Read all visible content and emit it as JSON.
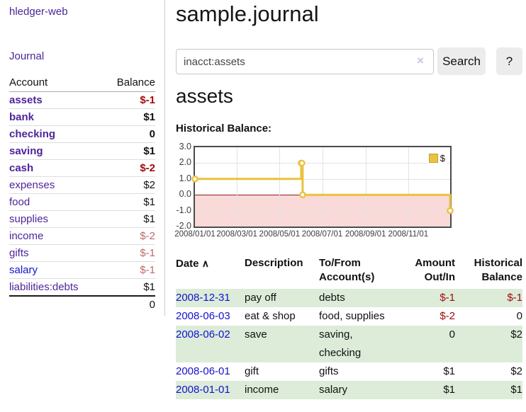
{
  "colors": {
    "link_purple": "#4D2599",
    "link_blue": "#1212CE",
    "negative_strong": "#A40A0A",
    "negative_soft": "#C06A6A",
    "row_stripe_green": "#DCECD9",
    "chart_gold": "#E9C23F",
    "chart_negative_fill": "#FAD9D9",
    "chart_zero_line": "#8B1A1A"
  },
  "sidebar": {
    "app_title": "hledger-web",
    "nav_journal": "Journal",
    "table": {
      "headers": {
        "account": "Account",
        "balance": "Balance"
      },
      "accounts": [
        {
          "name": "assets",
          "balance": "$-1",
          "level": 0,
          "bold": true,
          "name_color": "purple",
          "balance_color": "negative_strong"
        },
        {
          "name": "bank",
          "balance": "$1",
          "level": 1,
          "bold": true,
          "name_color": "purple",
          "balance_color": "default"
        },
        {
          "name": "checking",
          "balance": "0",
          "level": 2,
          "bold": true,
          "name_color": "purple",
          "balance_color": "default"
        },
        {
          "name": "saving",
          "balance": "$1",
          "level": 2,
          "bold": true,
          "name_color": "purple",
          "balance_color": "default"
        },
        {
          "name": "cash",
          "balance": "$-2",
          "level": 1,
          "bold": true,
          "name_color": "purple",
          "balance_color": "negative_strong"
        },
        {
          "name": "expenses",
          "balance": "$2",
          "level": 0,
          "bold": false,
          "name_color": "purple",
          "balance_color": "default"
        },
        {
          "name": "food",
          "balance": "$1",
          "level": 1,
          "bold": false,
          "name_color": "purple",
          "balance_color": "default"
        },
        {
          "name": "supplies",
          "balance": "$1",
          "level": 1,
          "bold": false,
          "name_color": "purple",
          "balance_color": "default"
        },
        {
          "name": "income",
          "balance": "$-2",
          "level": 0,
          "bold": false,
          "name_color": "purple",
          "balance_color": "negative_soft"
        },
        {
          "name": "gifts",
          "balance": "$-1",
          "level": 1,
          "bold": false,
          "name_color": "purple",
          "balance_color": "negative_soft"
        },
        {
          "name": "salary",
          "balance": "$-1",
          "level": 1,
          "bold": false,
          "name_color": "blue",
          "balance_color": "negative_soft"
        },
        {
          "name": "liabilities:debts",
          "balance": "$1",
          "level": 0,
          "bold": false,
          "name_color": "purple",
          "balance_color": "default"
        }
      ],
      "total": "0"
    }
  },
  "main": {
    "title": "sample.journal",
    "search": {
      "value": "inacct:assets",
      "clear_icon": "×",
      "search_button": "Search",
      "help_button": "?"
    },
    "account_heading": "assets",
    "chart_heading": "Historical Balance:"
  },
  "chart_data": {
    "type": "line",
    "step": true,
    "title": "Historical Balance",
    "series": [
      {
        "name": "$",
        "color": "#E9C23F",
        "points": [
          [
            "2008-01-01",
            1
          ],
          [
            "2008-06-01",
            2
          ],
          [
            "2008-06-02",
            2
          ],
          [
            "2008-06-03",
            0
          ],
          [
            "2008-12-31",
            -1
          ]
        ]
      }
    ],
    "ylim": [
      -2,
      3
    ],
    "yticks": [
      "3.0",
      "2.0",
      "1.0",
      "0.0",
      "-1.0",
      "-2.0"
    ],
    "xticks": [
      "2008/01/01",
      "2008/03/01",
      "2008/05/01",
      "2008/07/01",
      "2008/09/01",
      "2008/11/01"
    ],
    "x_range": [
      "2008-01-01",
      "2008-12-31"
    ],
    "grid": true,
    "legend_position": "top-right"
  },
  "register": {
    "headers": {
      "date": "Date",
      "sort_icon": "∧",
      "description": "Description",
      "accounts": "To/From Account(s)",
      "amount": "Amount Out/In",
      "balance": "Historical Balance"
    },
    "rows": [
      {
        "date": "2008-12-31",
        "description": "pay off",
        "accounts": [
          "debts"
        ],
        "amount": "$-1",
        "amount_negative": true,
        "balance": "$-1",
        "balance_negative": true,
        "stripe": true
      },
      {
        "date": "2008-06-03",
        "description": "eat & shop",
        "accounts": [
          "food",
          "supplies"
        ],
        "amount": "$-2",
        "amount_negative": true,
        "balance": "0",
        "balance_negative": false,
        "stripe": false
      },
      {
        "date": "2008-06-02",
        "description": "save",
        "accounts": [
          "saving",
          "checking"
        ],
        "amount": "0",
        "amount_negative": false,
        "balance": "$2",
        "balance_negative": false,
        "stripe": true
      },
      {
        "date": "2008-06-01",
        "description": "gift",
        "accounts": [
          "gifts"
        ],
        "amount": "$1",
        "amount_negative": false,
        "balance": "$2",
        "balance_negative": false,
        "stripe": false
      },
      {
        "date": "2008-01-01",
        "description": "income",
        "accounts": [
          "salary"
        ],
        "amount": "$1",
        "amount_negative": false,
        "balance": "$1",
        "balance_negative": false,
        "stripe": true
      }
    ]
  }
}
